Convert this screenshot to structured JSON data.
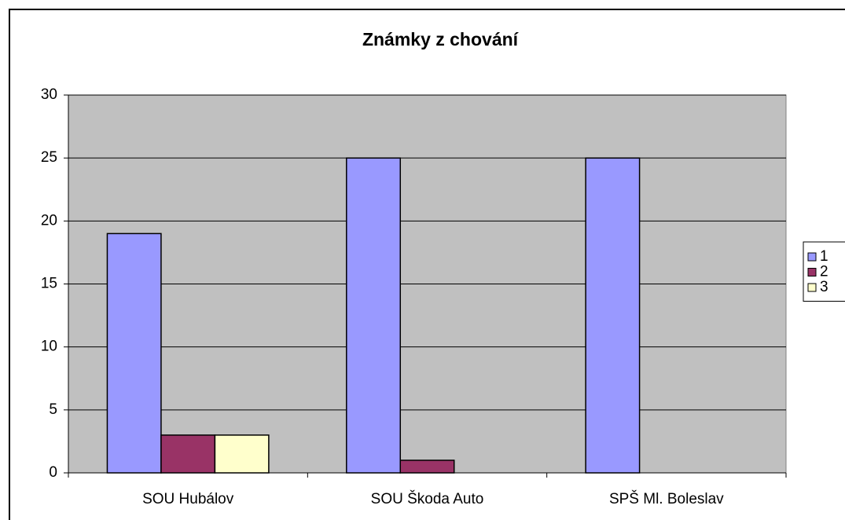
{
  "chart_data": {
    "type": "bar",
    "title": "Známky z chování",
    "categories": [
      "SOU Hubálov",
      "SOU Škoda Auto",
      "SPŠ Ml. Boleslav"
    ],
    "series": [
      {
        "name": "1",
        "color": "#9999ff",
        "values": [
          19,
          25,
          25
        ]
      },
      {
        "name": "2",
        "color": "#993366",
        "values": [
          3,
          1,
          0
        ]
      },
      {
        "name": "3",
        "color": "#ffffcc",
        "values": [
          3,
          0,
          0
        ]
      }
    ],
    "ylim": [
      0,
      30
    ],
    "yticks": [
      0,
      5,
      10,
      15,
      20,
      25,
      30
    ],
    "grid": true,
    "legend": "right",
    "plot_background": "#c0c0c0"
  }
}
